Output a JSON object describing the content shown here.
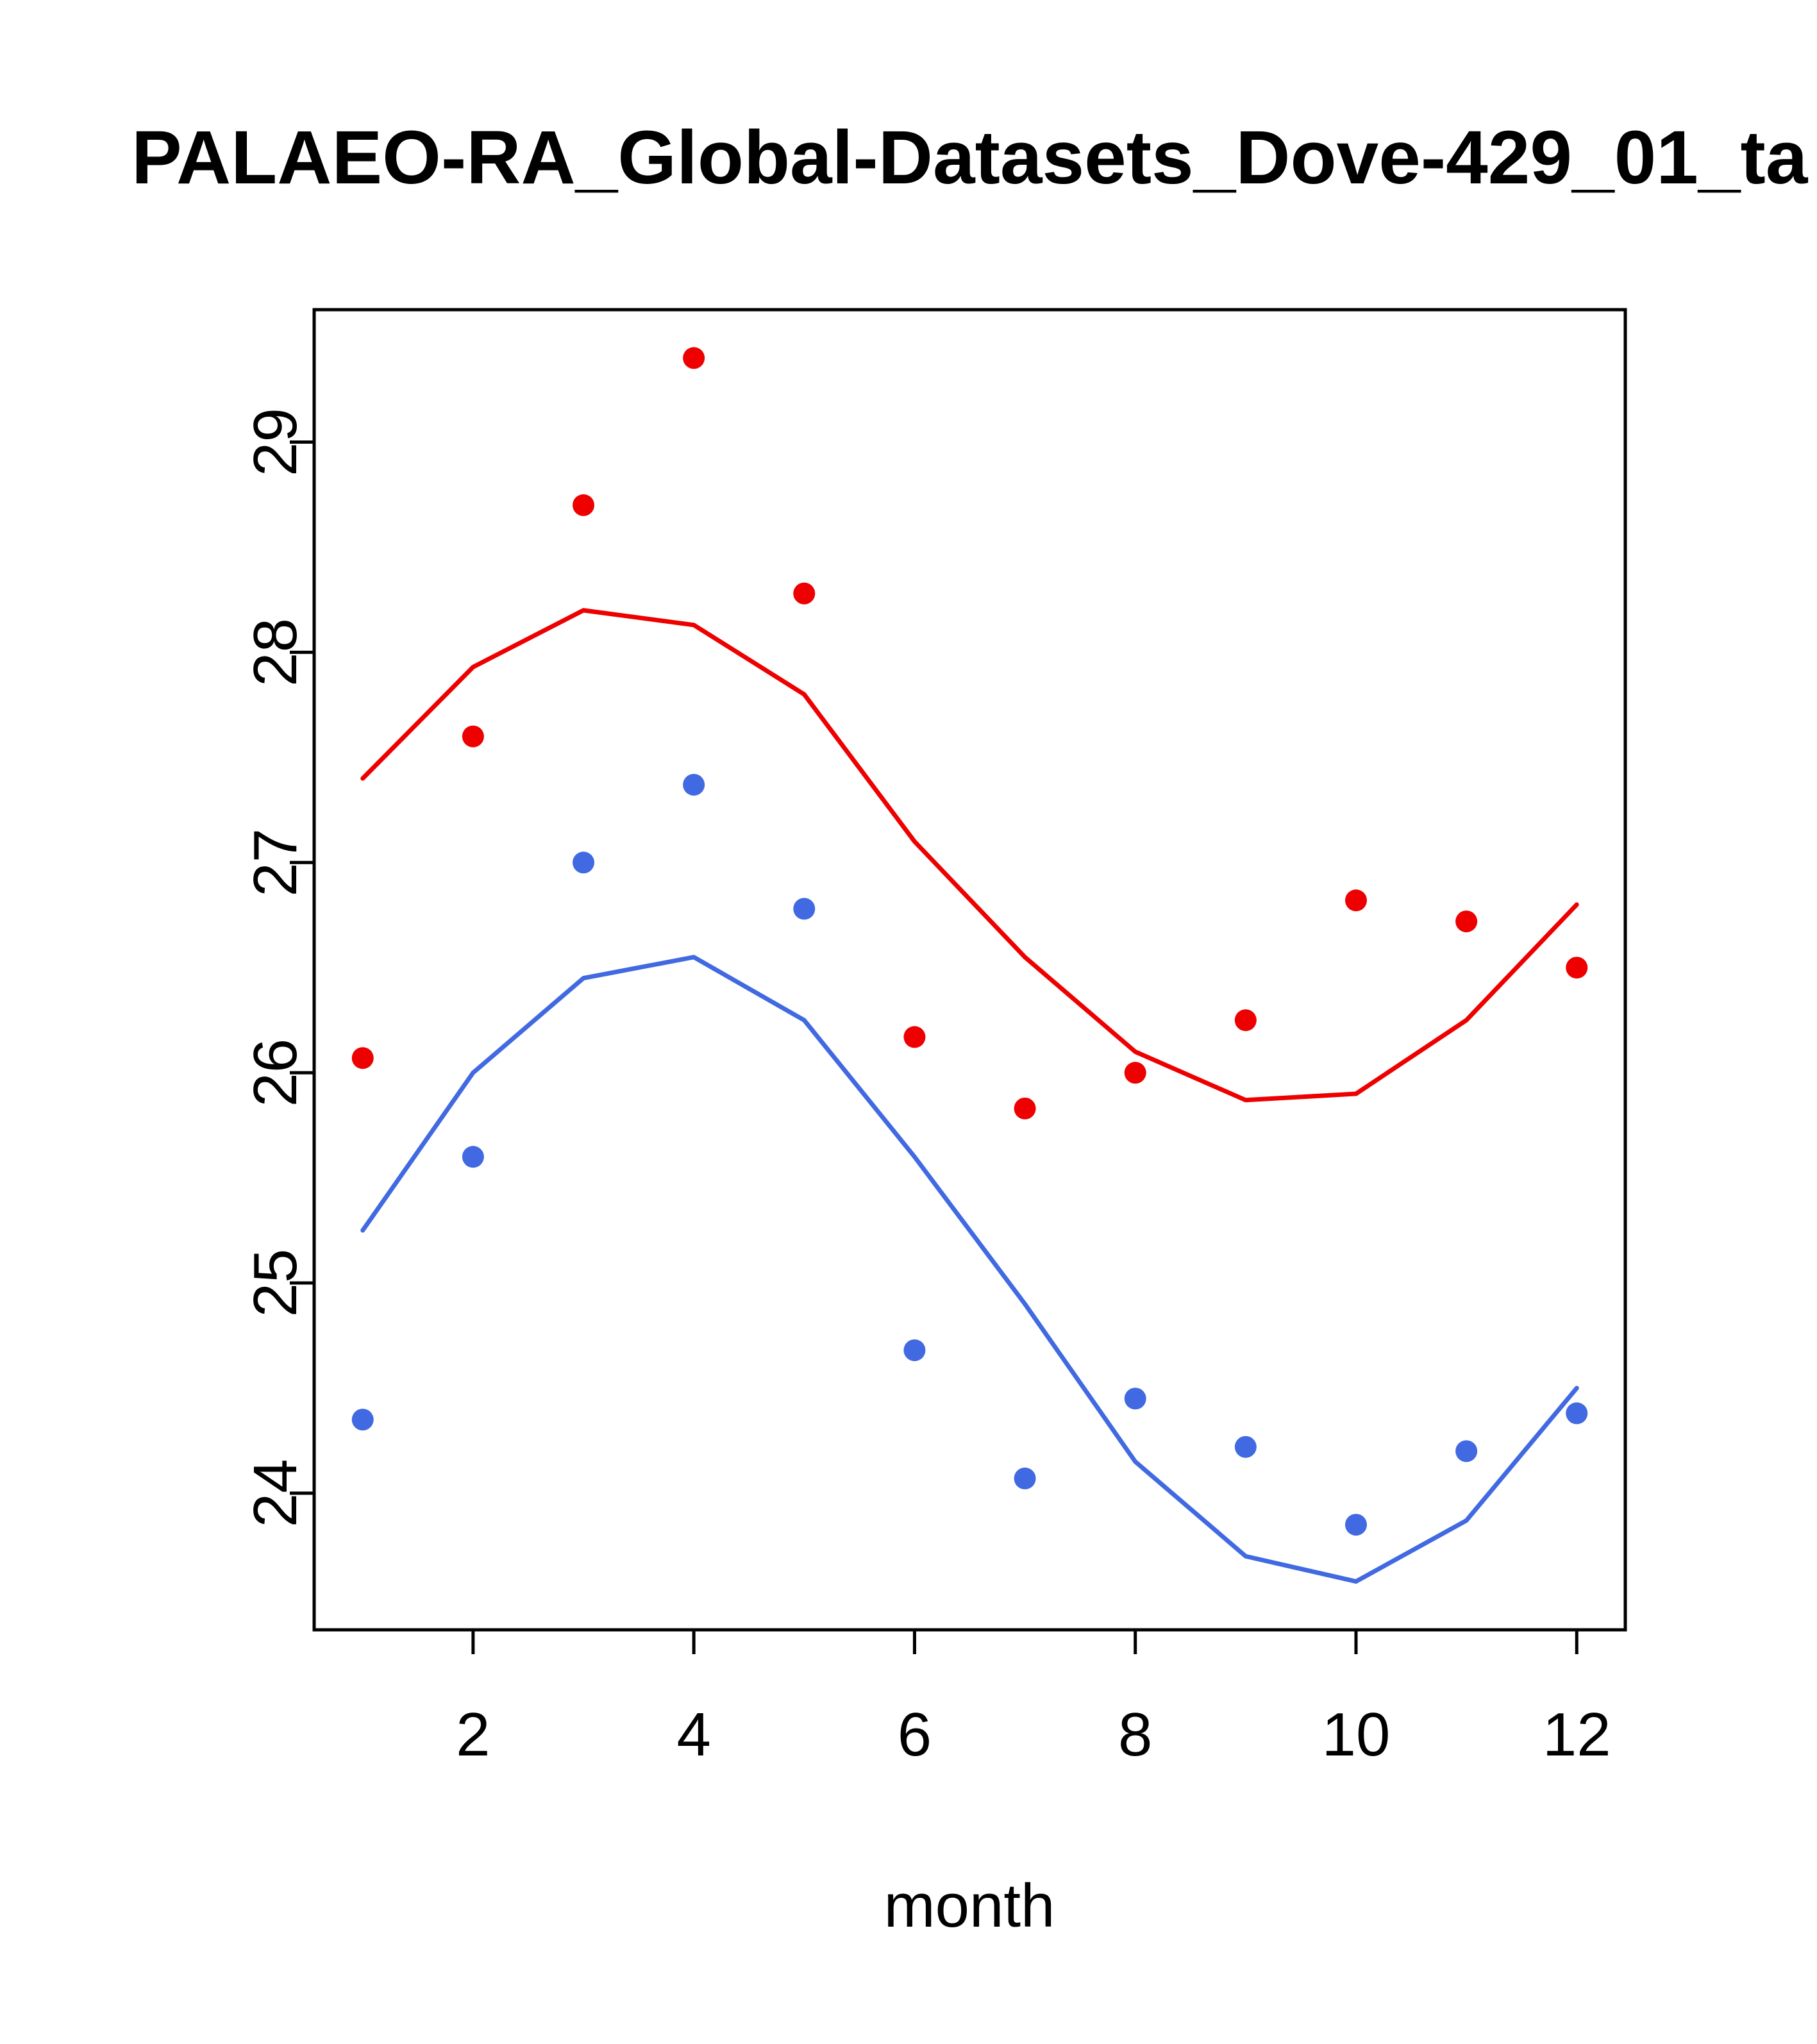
{
  "title": "PALAEO-RA_Global-Datasets_Dove-429_01_ta",
  "chart_data": {
    "type": "line",
    "title": "PALAEO-RA_Global-Datasets_Dove-429_01_ta",
    "xlabel": "month",
    "ylabel": "",
    "x": [
      1,
      2,
      3,
      4,
      5,
      6,
      7,
      8,
      9,
      10,
      11,
      12
    ],
    "xticks": [
      2,
      4,
      6,
      8,
      10,
      12
    ],
    "yticks": [
      24,
      25,
      26,
      27,
      28,
      29
    ],
    "xlim": [
      0.56,
      12.44
    ],
    "ylim": [
      23.35,
      29.63
    ],
    "grid": false,
    "legend": "none",
    "series": [
      {
        "name": "red-line",
        "type": "line",
        "color": "#ee0000",
        "values": [
          27.4,
          27.93,
          28.2,
          28.13,
          27.8,
          27.1,
          26.55,
          26.1,
          25.87,
          25.9,
          26.25,
          26.8
        ]
      },
      {
        "name": "blue-line",
        "type": "line",
        "color": "#4169e1",
        "values": [
          25.25,
          26.0,
          26.45,
          26.55,
          26.25,
          25.6,
          24.9,
          24.15,
          23.7,
          23.58,
          23.87,
          24.5
        ]
      },
      {
        "name": "red-points",
        "type": "scatter",
        "color": "#ee0000",
        "values": [
          26.07,
          27.6,
          28.7,
          29.4,
          28.28,
          26.17,
          25.83,
          26.0,
          26.25,
          26.82,
          26.72,
          26.5
        ]
      },
      {
        "name": "blue-points",
        "type": "scatter",
        "color": "#4169e1",
        "values": [
          24.35,
          25.6,
          27.0,
          27.37,
          26.78,
          24.68,
          24.07,
          24.45,
          24.22,
          23.85,
          24.2,
          24.38
        ]
      }
    ]
  }
}
